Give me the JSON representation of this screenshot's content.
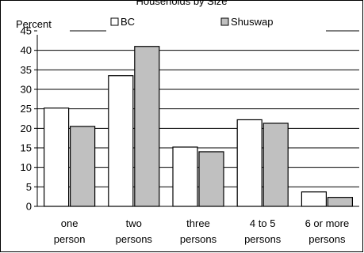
{
  "chart_data": {
    "type": "bar",
    "title": "Households by Size",
    "ylabel": "Percent",
    "xlabel": "",
    "ylim": [
      0,
      45
    ],
    "yticks": [
      0,
      5,
      10,
      15,
      20,
      25,
      30,
      35,
      40,
      45
    ],
    "grid": true,
    "legend_position": "top",
    "categories": [
      [
        "one",
        "person"
      ],
      [
        "two",
        "persons"
      ],
      [
        "three",
        "persons"
      ],
      [
        "4 to 5",
        "persons"
      ],
      [
        "6 or more",
        "persons"
      ]
    ],
    "series": [
      {
        "name": "BC",
        "values": [
          25.2,
          33.5,
          15.2,
          22.2,
          3.7
        ],
        "color": "#ffffff"
      },
      {
        "name": "Shuswap",
        "values": [
          20.5,
          41.0,
          14.0,
          21.3,
          2.3
        ],
        "color": "#c0c0c0"
      }
    ]
  }
}
